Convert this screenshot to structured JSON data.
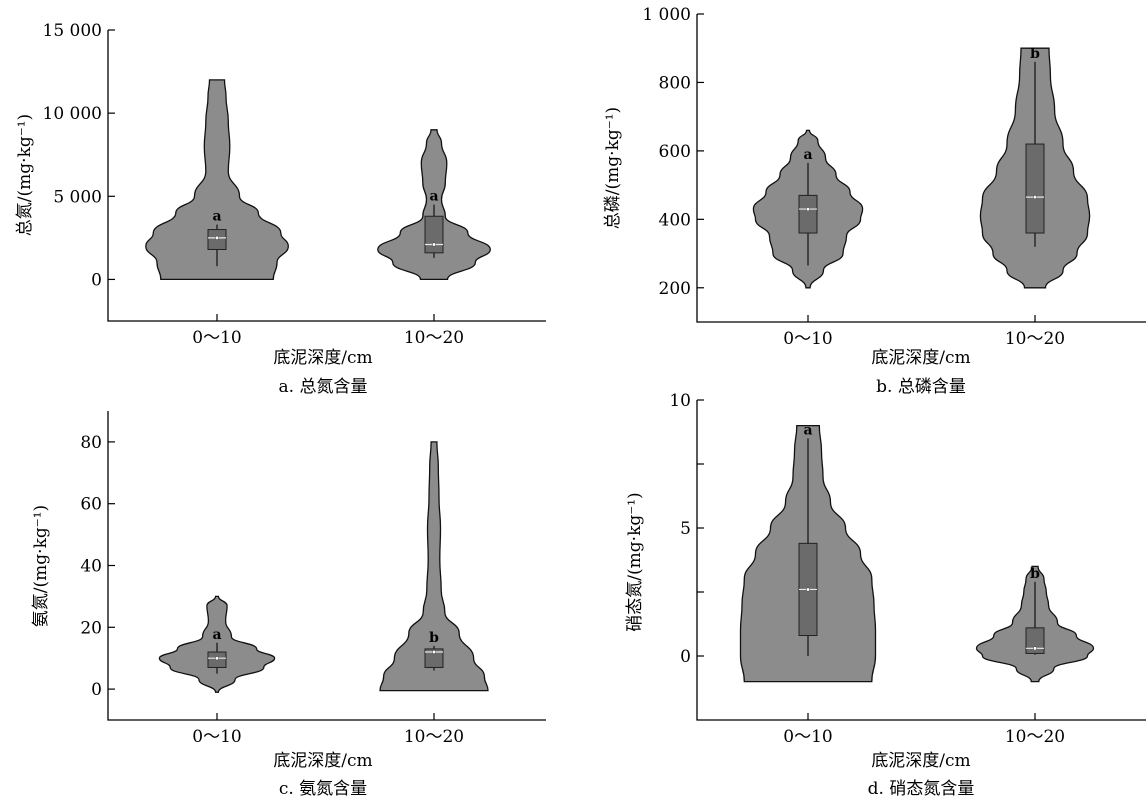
{
  "chart_data": [
    {
      "id": "a",
      "type": "violin",
      "xlabel": "底泥深度/cm",
      "ylabel": "总氮/(mg·kg⁻¹)",
      "caption": "a. 总氮含量",
      "categories": [
        "0～10",
        "10～20"
      ],
      "ylim": [
        -2500,
        15000
      ],
      "yticks": [
        0,
        5000,
        10000,
        15000
      ],
      "ytick_labels": [
        "0",
        "5 000",
        "10 000",
        "15 000"
      ],
      "groups": [
        {
          "category": "0～10",
          "letter": "a",
          "box": {
            "q1": 1800,
            "median": 2500,
            "q3": 3000,
            "whisker_low": 800,
            "whisker_high": 3300
          },
          "density": [
            [
              0,
              0.75
            ],
            [
              1000,
              0.8
            ],
            [
              2000,
              0.95
            ],
            [
              2800,
              0.85
            ],
            [
              4000,
              0.55
            ],
            [
              5000,
              0.3
            ],
            [
              6500,
              0.15
            ],
            [
              8000,
              0.17
            ],
            [
              9500,
              0.15
            ],
            [
              11000,
              0.12
            ],
            [
              12000,
              0.1
            ]
          ]
        },
        {
          "category": "10～20",
          "letter": "a",
          "box": {
            "q1": 1600,
            "median": 2100,
            "q3": 3800,
            "whisker_low": 1300,
            "whisker_high": 4500
          },
          "density": [
            [
              0,
              0.18
            ],
            [
              1000,
              0.55
            ],
            [
              1800,
              0.75
            ],
            [
              2800,
              0.45
            ],
            [
              3800,
              0.15
            ],
            [
              4800,
              0.1
            ],
            [
              5800,
              0.15
            ],
            [
              7000,
              0.17
            ],
            [
              8200,
              0.1
            ],
            [
              9000,
              0.04
            ]
          ]
        }
      ]
    },
    {
      "id": "b",
      "type": "violin",
      "xlabel": "底泥深度/cm",
      "ylabel": "总磷/(mg·kg⁻¹)",
      "caption": "b. 总磷含量",
      "categories": [
        "0～10",
        "10～20"
      ],
      "ylim": [
        100,
        1000
      ],
      "yticks": [
        200,
        400,
        600,
        800,
        1000
      ],
      "ytick_labels": [
        "200",
        "400",
        "600",
        "800",
        "1 000"
      ],
      "groups": [
        {
          "category": "0～10",
          "letter": "a",
          "box": {
            "q1": 360,
            "median": 430,
            "q3": 470,
            "whisker_low": 265,
            "whisker_high": 565
          },
          "density": [
            [
              200,
              0.03
            ],
            [
              250,
              0.22
            ],
            [
              300,
              0.5
            ],
            [
              350,
              0.55
            ],
            [
              400,
              0.75
            ],
            [
              430,
              0.78
            ],
            [
              480,
              0.6
            ],
            [
              530,
              0.4
            ],
            [
              580,
              0.25
            ],
            [
              630,
              0.14
            ],
            [
              660,
              0.02
            ]
          ]
        },
        {
          "category": "10～20",
          "letter": "b",
          "box": {
            "q1": 360,
            "median": 465,
            "q3": 620,
            "whisker_low": 320,
            "whisker_high": 860
          },
          "density": [
            [
              200,
              0.15
            ],
            [
              250,
              0.4
            ],
            [
              300,
              0.6
            ],
            [
              360,
              0.75
            ],
            [
              410,
              0.78
            ],
            [
              460,
              0.75
            ],
            [
              540,
              0.55
            ],
            [
              620,
              0.4
            ],
            [
              720,
              0.28
            ],
            [
              820,
              0.22
            ],
            [
              900,
              0.2
            ]
          ]
        }
      ]
    },
    {
      "id": "c",
      "type": "violin",
      "xlabel": "底泥深度/cm",
      "ylabel": "氨氮/(mg·kg⁻¹)",
      "caption": "c. 氨氮含量",
      "categories": [
        "0～10",
        "10～20"
      ],
      "ylim": [
        -10,
        90
      ],
      "yticks": [
        0,
        20,
        40,
        60,
        80
      ],
      "ytick_labels": [
        "0",
        "20",
        "40",
        "60",
        "80"
      ],
      "groups": [
        {
          "category": "0～10",
          "letter": "a",
          "box": {
            "q1": 7,
            "median": 10,
            "q3": 12,
            "whisker_low": 5,
            "whisker_high": 15
          },
          "density": [
            [
              -1,
              0.02
            ],
            [
              3,
              0.25
            ],
            [
              7,
              0.65
            ],
            [
              10,
              0.8
            ],
            [
              13,
              0.55
            ],
            [
              17,
              0.2
            ],
            [
              22,
              0.12
            ],
            [
              27,
              0.14
            ],
            [
              30,
              0.02
            ]
          ]
        },
        {
          "category": "10～20",
          "letter": "b",
          "box": {
            "q1": 7,
            "median": 12,
            "q3": 13,
            "whisker_low": 6,
            "whisker_high": 14
          },
          "density": [
            [
              -0.5,
              0.75
            ],
            [
              4,
              0.7
            ],
            [
              10,
              0.55
            ],
            [
              18,
              0.35
            ],
            [
              25,
              0.15
            ],
            [
              32,
              0.1
            ],
            [
              42,
              0.08
            ],
            [
              52,
              0.09
            ],
            [
              62,
              0.07
            ],
            [
              72,
              0.06
            ],
            [
              80,
              0.04
            ]
          ]
        }
      ]
    },
    {
      "id": "d",
      "type": "violin",
      "xlabel": "底泥深度/cm",
      "ylabel": "硝态氮/(mg·kg⁻¹)",
      "caption": "d. 硝态氮含量",
      "categories": [
        "0～10",
        "10～20"
      ],
      "ylim": [
        -2.5,
        10
      ],
      "yticks": [
        0,
        2.5,
        5,
        7.5,
        10
      ],
      "ytick_labels": [
        "0",
        "",
        "5",
        "",
        "10"
      ],
      "groups": [
        {
          "category": "0～10",
          "letter": "a",
          "box": {
            "q1": 0.8,
            "median": 2.6,
            "q3": 4.4,
            "whisker_low": 0,
            "whisker_high": 8.5
          },
          "density": [
            [
              -1,
              0.85
            ],
            [
              0,
              0.9
            ],
            [
              1,
              0.9
            ],
            [
              2,
              0.88
            ],
            [
              3,
              0.85
            ],
            [
              4,
              0.7
            ],
            [
              5,
              0.5
            ],
            [
              6,
              0.3
            ],
            [
              7,
              0.2
            ],
            [
              8,
              0.18
            ],
            [
              9,
              0.15
            ]
          ]
        },
        {
          "category": "10～20",
          "letter": "b",
          "box": {
            "q1": 0.1,
            "median": 0.3,
            "q3": 1.1,
            "whisker_low": 0.05,
            "whisker_high": 2.9
          },
          "density": [
            [
              -1,
              0.05
            ],
            [
              -0.5,
              0.25
            ],
            [
              0,
              0.7
            ],
            [
              0.3,
              0.78
            ],
            [
              0.8,
              0.55
            ],
            [
              1.3,
              0.3
            ],
            [
              2,
              0.18
            ],
            [
              2.5,
              0.15
            ],
            [
              3,
              0.12
            ],
            [
              3.5,
              0.04
            ]
          ]
        }
      ]
    }
  ]
}
